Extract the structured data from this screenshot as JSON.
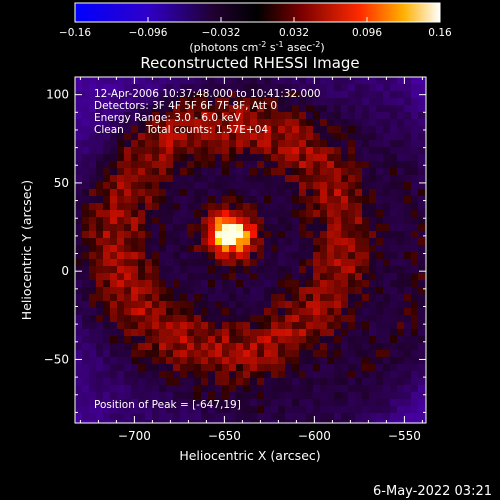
{
  "colorbar": {
    "ticks": [
      "-0.16",
      "-0.096",
      "-0.032",
      "0.032",
      "0.096",
      "0.16"
    ],
    "unit_prefix": "(photons cm",
    "unit_exp1": "-2",
    "unit_mid": " s",
    "unit_exp2": "-1",
    "unit_mid2": " asec",
    "unit_exp3": "-2",
    "unit_suffix": ")",
    "range": [
      -0.16,
      0.16
    ],
    "colors": [
      "#0000ff",
      "#000000",
      "#ff0000",
      "#ffffff"
    ]
  },
  "chart_data": {
    "type": "heatmap",
    "title": "Reconstructed RHESSI Image",
    "xlabel": "Heliocentric X (arcsec)",
    "ylabel": "Heliocentric Y (arcsec)",
    "xlim": [
      -733,
      -538
    ],
    "ylim": [
      -86,
      110
    ],
    "x_ticks": [
      -700,
      -650,
      -600,
      -550
    ],
    "x_tick_labels": [
      "−700",
      "−650",
      "−600",
      "−550"
    ],
    "y_ticks": [
      100,
      50,
      0,
      -50
    ],
    "y_tick_labels": [
      "100",
      "50",
      "0",
      "−50"
    ],
    "peak": [
      -647,
      19
    ],
    "annotations": [
      "12-Apr-2006 10:37:48.000 to 10:41:32.000",
      "Detectors: 3F 4F 5F 6F 7F 8F, Att 0",
      "Energy Range: 3.0 - 6.0 keV",
      "Clean",
      "Total counts: 1.57E+04"
    ],
    "peak_label": "Position of Peak = [-647,19]"
  },
  "timestamp": "6-May-2022 03:21"
}
